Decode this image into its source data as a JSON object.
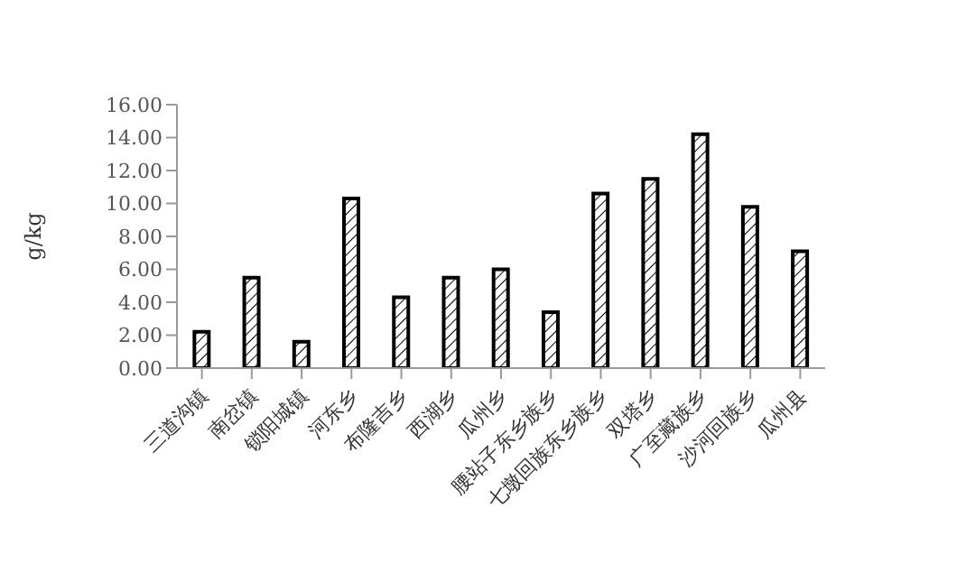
{
  "chart_data": {
    "type": "bar",
    "ylabel": "g/kg",
    "categories": [
      "三道沟镇",
      "南岔镇",
      "锁阳城镇",
      "河东乡",
      "布隆吉乡",
      "西湖乡",
      "瓜州乡",
      "腰站子东乡族乡",
      "七墩回族东乡族乡",
      "双塔乡",
      "广至藏族乡",
      "沙河回族乡",
      "瓜州县"
    ],
    "values": [
      2.2,
      5.5,
      1.6,
      10.3,
      4.3,
      5.5,
      6.0,
      3.4,
      10.6,
      11.5,
      14.2,
      9.8,
      7.1
    ],
    "color": "#000000",
    "ylim": [
      0,
      16
    ],
    "yticks": [
      {
        "value": 0,
        "label": "0.00"
      },
      {
        "value": 2,
        "label": "2.00"
      },
      {
        "value": 4,
        "label": "4.00"
      },
      {
        "value": 6,
        "label": "6.00"
      },
      {
        "value": 8,
        "label": "8.00"
      },
      {
        "value": 10,
        "label": "10.00"
      },
      {
        "value": 12,
        "label": "12.00"
      },
      {
        "value": 14,
        "label": "14.00"
      },
      {
        "value": 16,
        "label": "16.00"
      }
    ],
    "grid": false,
    "legend": false
  }
}
